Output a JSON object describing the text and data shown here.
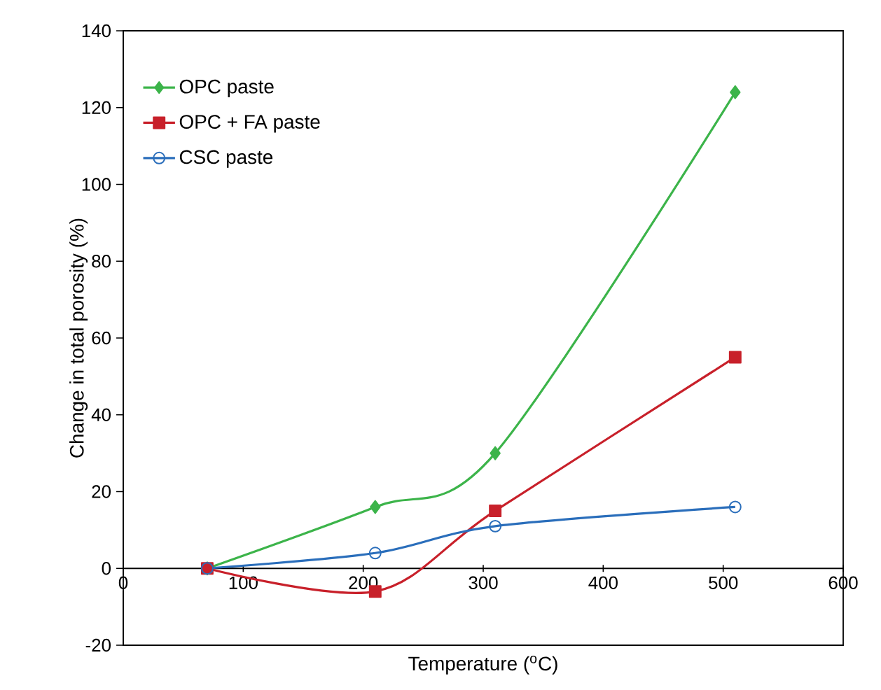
{
  "chart_data": {
    "type": "line",
    "xlabel": "Temperature ($^{o}$C)",
    "ylabel": "Change in total porosity (%)",
    "xlim": [
      0,
      600
    ],
    "xticks": [
      0,
      100,
      200,
      300,
      400,
      500,
      600
    ],
    "ylim": [
      -20,
      140
    ],
    "yticks": [
      -20,
      0,
      20,
      40,
      60,
      80,
      100,
      120,
      140
    ],
    "grid": false,
    "legend": "top left",
    "series": [
      {
        "name": "OPC paste",
        "color": "#3cb44a",
        "marker": "diamond",
        "x": [
          70,
          210,
          310,
          510
        ],
        "values": [
          0,
          16,
          30,
          124
        ]
      },
      {
        "name": "OPC + FA paste",
        "color": "#c8202a",
        "marker": "square",
        "x": [
          70,
          210,
          310,
          510
        ],
        "values": [
          0,
          -6,
          15,
          55
        ]
      },
      {
        "name": "CSC paste",
        "color": "#2a6ebb",
        "marker": "circle",
        "x": [
          70,
          210,
          310,
          510
        ],
        "values": [
          0,
          4,
          11,
          16
        ]
      }
    ]
  }
}
